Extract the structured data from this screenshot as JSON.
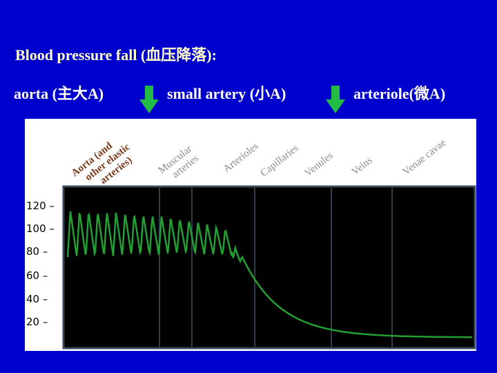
{
  "slide": {
    "title": "Blood pressure fall (血压降落):",
    "aorta_label": "aorta (主大A)",
    "small_artery_label": "small artery (小A)",
    "arteriole_label": "arteriole(微A)"
  },
  "colors": {
    "background": "#0000cc",
    "title_text": "#ffffcc",
    "body_text": "#ffffff",
    "arrow": "#22bb44",
    "plot_bg": "#000000",
    "trace": "#22a033",
    "grid": "#2f3f4a"
  },
  "figure": {
    "vessel_labels": [
      "Aorta (and other elastic arteries)",
      "Muscular arteries",
      "Arterioles",
      "Capillaries",
      "Venules",
      "Veins",
      "Venae cavae"
    ],
    "y_ticks": [
      "120 –",
      "100 –",
      "80 –",
      "60 –",
      "40 –",
      "20 –"
    ]
  }
}
